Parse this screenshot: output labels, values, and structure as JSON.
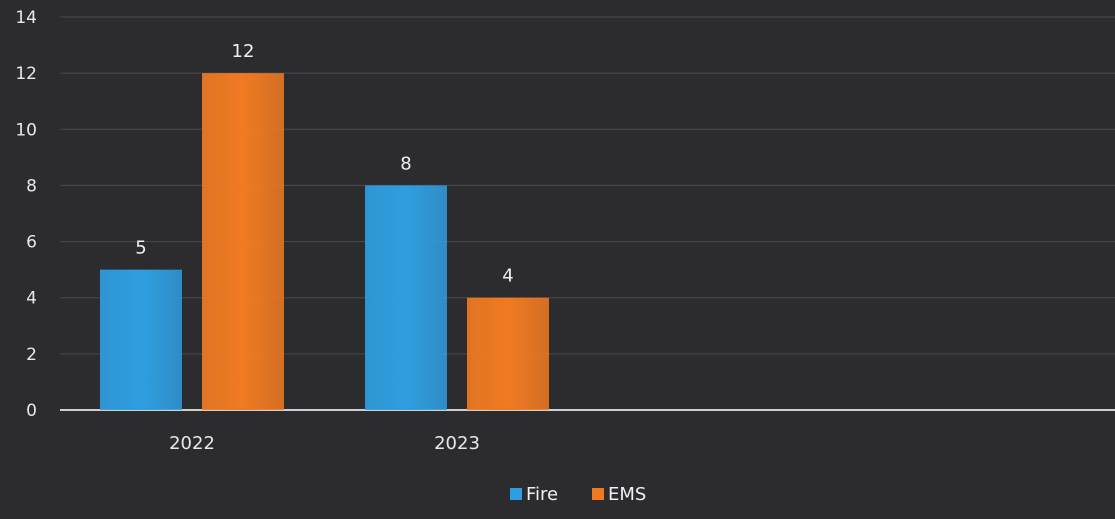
{
  "chart_data": {
    "type": "bar",
    "categories": [
      "2022",
      "2023"
    ],
    "series": [
      {
        "name": "Fire",
        "values": [
          5,
          8
        ],
        "color": "#2f9ee0"
      },
      {
        "name": "EMS",
        "values": [
          12,
          4
        ],
        "color": "#f07a22"
      }
    ],
    "yticks": [
      "0",
      "2",
      "4",
      "6",
      "8",
      "10",
      "12",
      "14"
    ],
    "ylim": [
      0,
      14
    ],
    "grid": true,
    "legend_position": "bottom",
    "background": "#2c2c2f"
  }
}
